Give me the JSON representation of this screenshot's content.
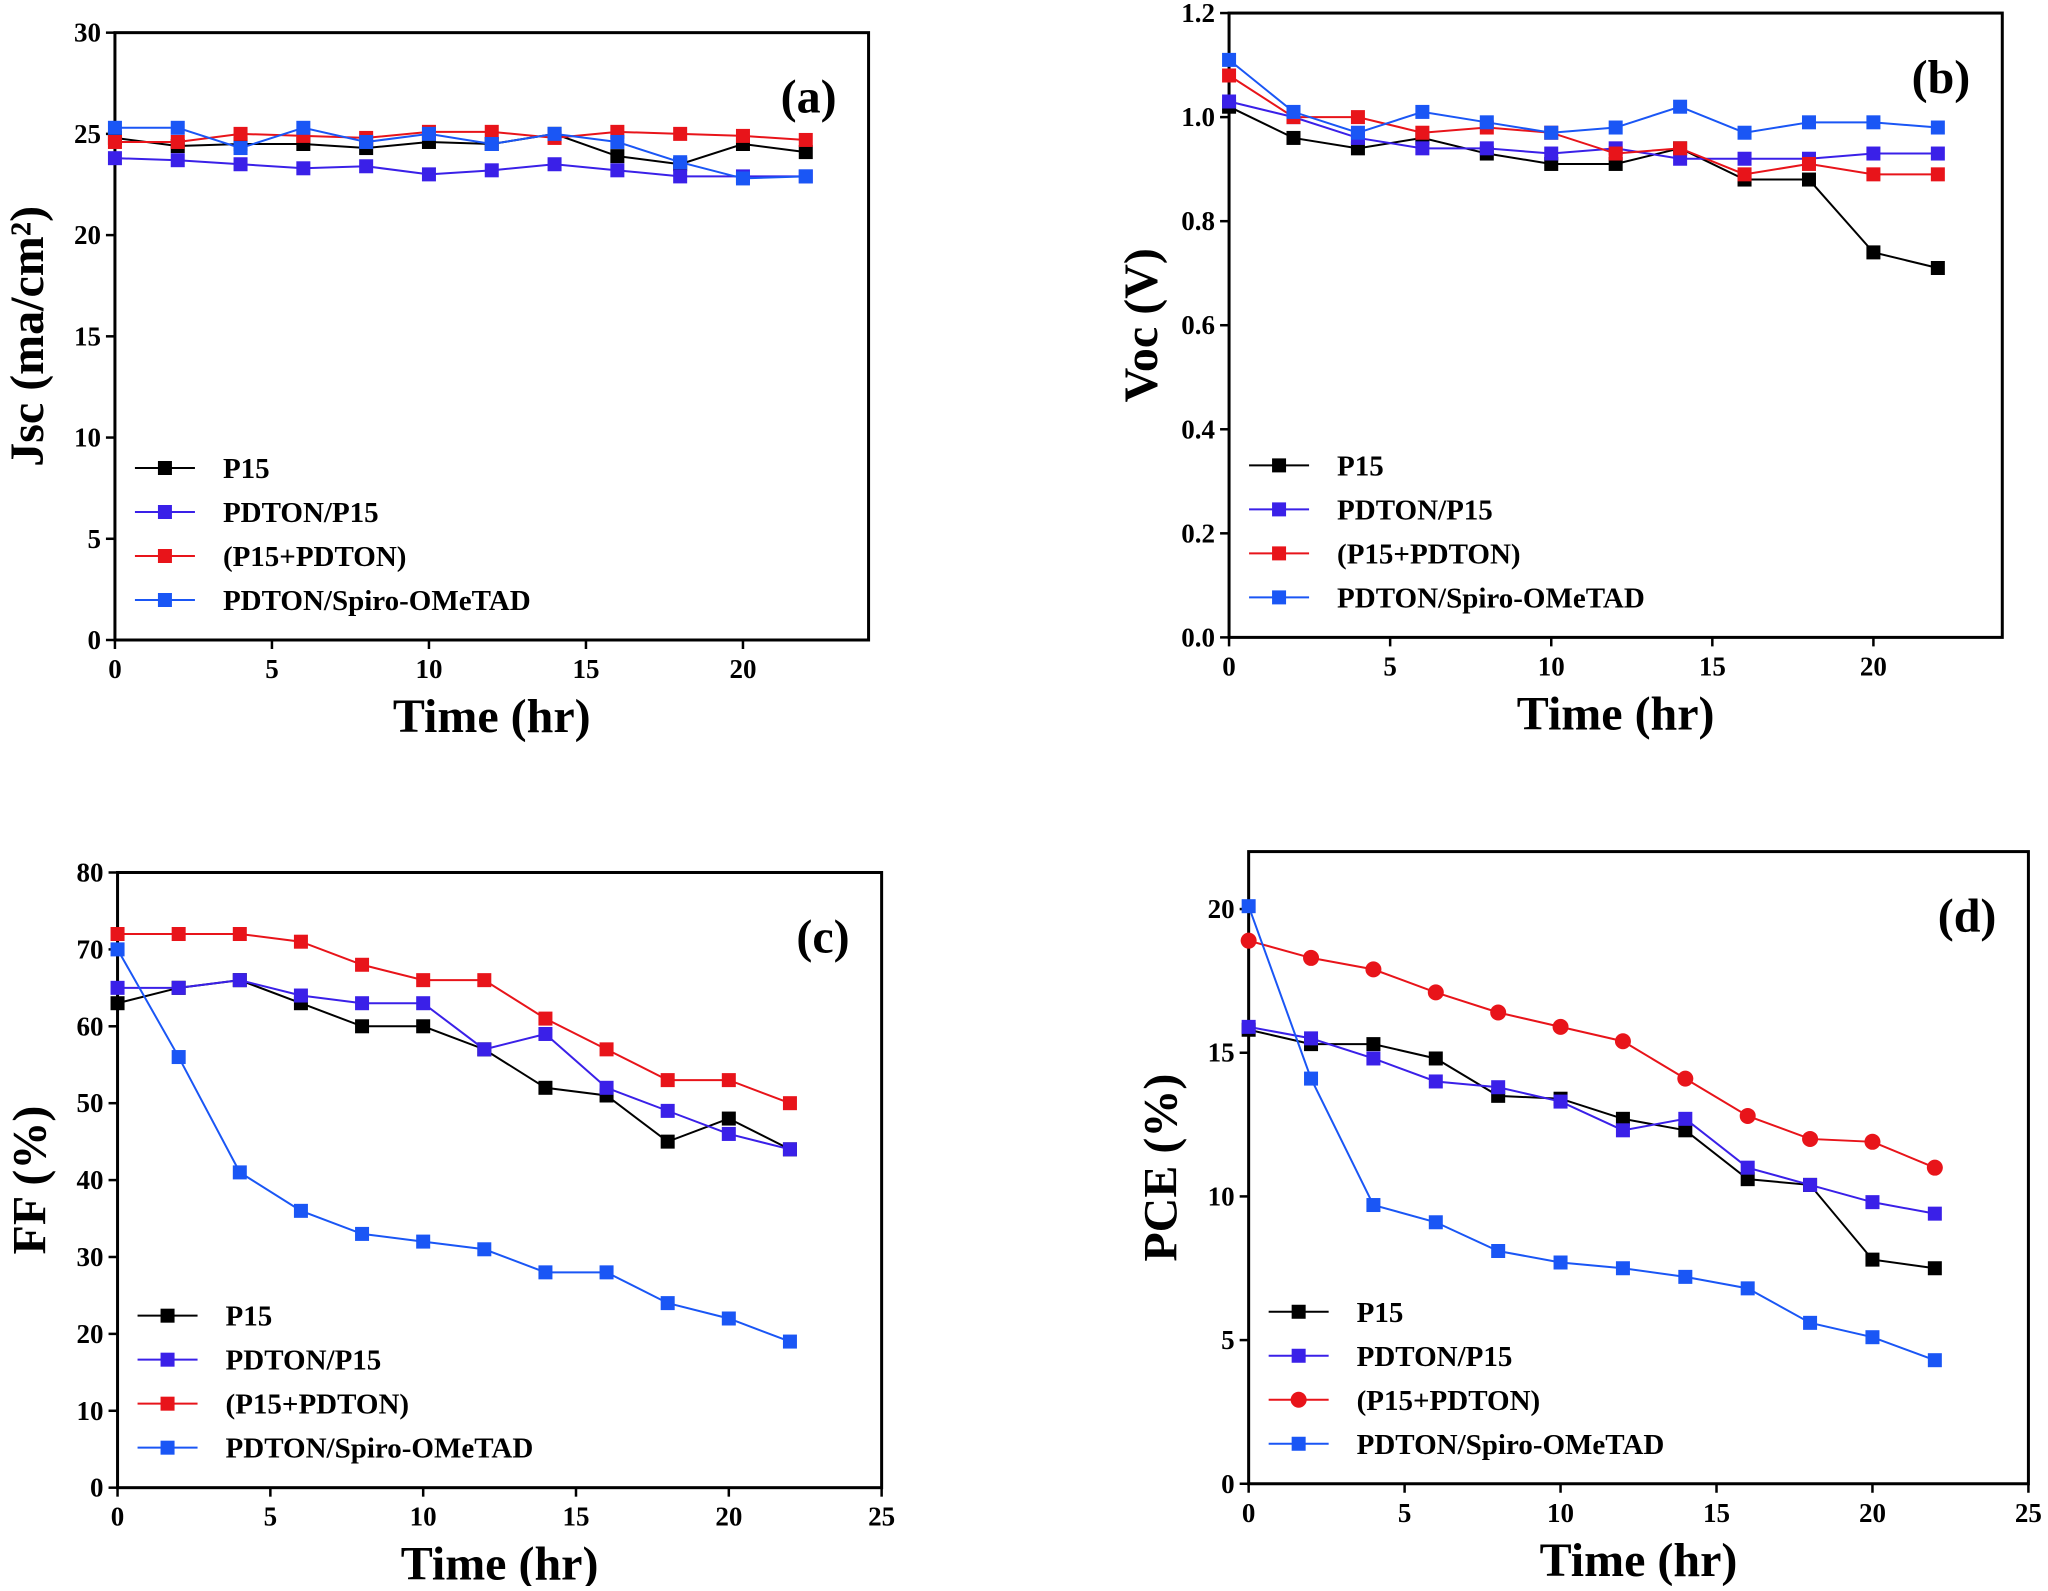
{
  "chart_data": [
    {
      "type": "line",
      "panel_label": "(a)",
      "x_label": "Time (hr)",
      "y_label": "Jsc (ma/cm²)",
      "x": [
        0,
        2,
        4,
        6,
        8,
        10,
        12,
        14,
        16,
        18,
        20,
        22
      ],
      "xlim": [
        0,
        24
      ],
      "xticks": [
        0,
        5,
        10,
        15,
        20
      ],
      "ylim": [
        0,
        30
      ],
      "yticks": [
        0,
        5,
        10,
        15,
        20,
        25,
        30
      ],
      "legend": "lower left",
      "series": [
        {
          "name": "P15",
          "color": "#000000",
          "marker": "square",
          "values": [
            24.8,
            24.4,
            24.5,
            24.5,
            24.3,
            24.6,
            24.5,
            25.0,
            23.9,
            23.5,
            24.5,
            24.1
          ]
        },
        {
          "name": "PDTON/P15",
          "color": "#3a20e8",
          "marker": "square",
          "values": [
            23.8,
            23.7,
            23.5,
            23.3,
            23.4,
            23.0,
            23.2,
            23.5,
            23.2,
            22.9,
            22.9,
            22.9
          ]
        },
        {
          "name": "(P15+PDTON)",
          "color": "#e8141a",
          "marker": "square",
          "values": [
            24.6,
            24.6,
            25.0,
            24.9,
            24.8,
            25.1,
            25.1,
            24.8,
            25.1,
            25.0,
            24.9,
            24.7
          ]
        },
        {
          "name": "PDTON/Spiro-OMeTAD",
          "color": "#1a56f5",
          "marker": "square",
          "values": [
            25.3,
            25.3,
            24.3,
            25.3,
            24.6,
            25.0,
            24.5,
            25.0,
            24.6,
            23.6,
            22.8,
            22.9
          ]
        }
      ]
    },
    {
      "type": "line",
      "panel_label": "(b)",
      "x_label": "Time (hr)",
      "y_label": "Voc (V)",
      "x": [
        0,
        2,
        4,
        6,
        8,
        10,
        12,
        14,
        16,
        18,
        20,
        22
      ],
      "xlim": [
        0,
        24
      ],
      "xticks": [
        0,
        5,
        10,
        15,
        20
      ],
      "ylim": [
        0,
        1.2
      ],
      "yticks": [
        {
          "value": 0,
          "label": "0.0"
        },
        0.2,
        0.4,
        0.6,
        0.8,
        {
          "value": 1,
          "label": "1.0"
        },
        1.2
      ],
      "legend": "lower left",
      "series": [
        {
          "name": "P15",
          "color": "#000000",
          "marker": "square",
          "values": [
            1.02,
            0.96,
            0.94,
            0.96,
            0.93,
            0.91,
            0.91,
            0.94,
            0.88,
            0.88,
            0.74,
            0.71
          ]
        },
        {
          "name": "PDTON/P15",
          "color": "#3a20e8",
          "marker": "square",
          "values": [
            1.03,
            1.0,
            0.96,
            0.94,
            0.94,
            0.93,
            0.94,
            0.92,
            0.92,
            0.92,
            0.93,
            0.93
          ]
        },
        {
          "name": "(P15+PDTON)",
          "color": "#e8141a",
          "marker": "square",
          "values": [
            1.08,
            1.0,
            1.0,
            0.97,
            0.98,
            0.97,
            0.93,
            0.94,
            0.89,
            0.91,
            0.89,
            0.89
          ]
        },
        {
          "name": "PDTON/Spiro-OMeTAD",
          "color": "#1a56f5",
          "marker": "square",
          "values": [
            1.11,
            1.01,
            0.97,
            1.01,
            0.99,
            0.97,
            0.98,
            1.02,
            0.97,
            0.99,
            0.99,
            0.98
          ]
        }
      ]
    },
    {
      "type": "line",
      "panel_label": "(c)",
      "x_label": "Time (hr)",
      "y_label": "FF (%)",
      "x": [
        0,
        2,
        4,
        6,
        8,
        10,
        12,
        14,
        16,
        18,
        20,
        22
      ],
      "xlim": [
        0,
        25
      ],
      "xticks": [
        0,
        5,
        10,
        15,
        20,
        25
      ],
      "ylim": [
        0,
        80
      ],
      "yticks": [
        0,
        10,
        20,
        30,
        40,
        50,
        60,
        70,
        80
      ],
      "legend": "lower left",
      "series": [
        {
          "name": "P15",
          "color": "#000000",
          "marker": "square",
          "values": [
            63,
            65,
            66,
            63,
            60,
            60,
            57,
            52,
            51,
            45,
            48,
            44
          ]
        },
        {
          "name": "PDTON/P15",
          "color": "#3a20e8",
          "marker": "square",
          "values": [
            65,
            65,
            66,
            64,
            63,
            63,
            57,
            59,
            52,
            49,
            46,
            44
          ]
        },
        {
          "name": "(P15+PDTON)",
          "color": "#e8141a",
          "marker": "square",
          "values": [
            72,
            72,
            72,
            71,
            68,
            66,
            66,
            61,
            57,
            53,
            53,
            50
          ]
        },
        {
          "name": "PDTON/Spiro-OMeTAD",
          "color": "#1a56f5",
          "marker": "square",
          "values": [
            70,
            56,
            41,
            36,
            33,
            32,
            31,
            28,
            28,
            24,
            22,
            19
          ]
        }
      ]
    },
    {
      "type": "line",
      "panel_label": "(d)",
      "x_label": "Time (hr)",
      "y_label": "PCE (%)",
      "x": [
        0,
        2,
        4,
        6,
        8,
        10,
        12,
        14,
        16,
        18,
        20,
        22
      ],
      "xlim": [
        0,
        25
      ],
      "xticks": [
        0,
        5,
        10,
        15,
        20,
        25
      ],
      "ylim": [
        0,
        22
      ],
      "yticks": [
        0,
        5,
        10,
        15,
        20
      ],
      "legend": "lower left",
      "series": [
        {
          "name": "P15",
          "color": "#000000",
          "marker": "square",
          "values": [
            15.8,
            15.3,
            15.3,
            14.8,
            13.5,
            13.4,
            12.7,
            12.3,
            10.6,
            10.4,
            7.8,
            7.5
          ]
        },
        {
          "name": "PDTON/P15",
          "color": "#3a20e8",
          "marker": "square",
          "values": [
            15.9,
            15.5,
            14.8,
            14.0,
            13.8,
            13.3,
            12.3,
            12.7,
            11.0,
            10.4,
            9.8,
            9.4
          ]
        },
        {
          "name": "(P15+PDTON)",
          "color": "#e8141a",
          "marker": "circle",
          "values": [
            18.9,
            18.3,
            17.9,
            17.1,
            16.4,
            15.9,
            15.4,
            14.1,
            12.8,
            12.0,
            11.9,
            11.0
          ]
        },
        {
          "name": "PDTON/Spiro-OMeTAD",
          "color": "#1a56f5",
          "marker": "square",
          "values": [
            20.1,
            14.1,
            9.7,
            9.1,
            8.1,
            7.7,
            7.5,
            7.2,
            6.8,
            5.6,
            5.1,
            4.3
          ]
        }
      ]
    }
  ]
}
